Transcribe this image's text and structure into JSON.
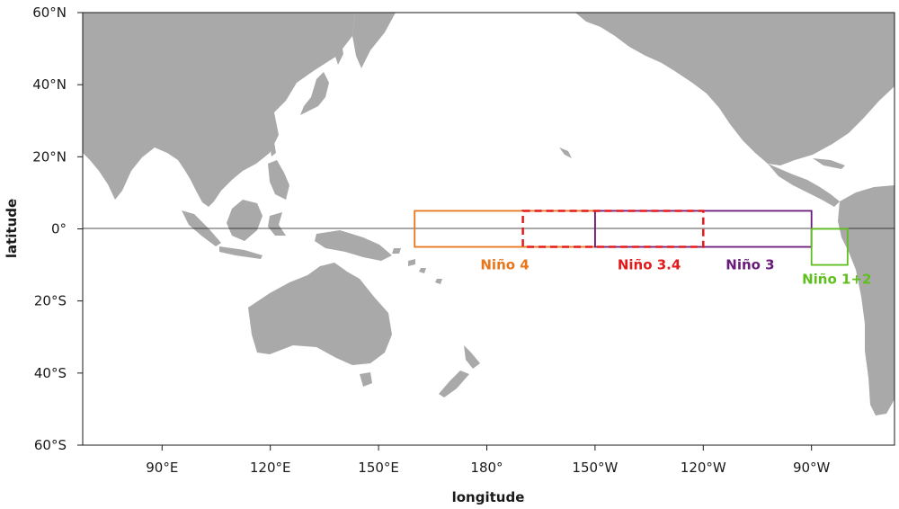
{
  "map": {
    "xlabel": "longitude",
    "ylabel": "latitude",
    "x_ticks": [
      "90°E",
      "120°E",
      "150°E",
      "180°",
      "150°W",
      "120°W",
      "90°W"
    ],
    "y_ticks": [
      "60°N",
      "40°N",
      "20°N",
      "0°",
      "20°S",
      "40°S",
      "60°S"
    ],
    "lon_range": [
      68,
      293
    ],
    "lat_range": [
      -60,
      60
    ],
    "land_color": "#a9a9a9"
  },
  "regions": [
    {
      "name": "Niño 4",
      "lon_range": [
        160,
        210
      ],
      "lat_range": [
        -5,
        5
      ],
      "color": "#e8761c",
      "style": "solid"
    },
    {
      "name": "Niño 3.4",
      "lon_range": [
        190,
        240
      ],
      "lat_range": [
        -5,
        5
      ],
      "color": "#e31a1c",
      "style": "dashed"
    },
    {
      "name": "Niño 3",
      "lon_range": [
        210,
        270
      ],
      "lat_range": [
        -5,
        5
      ],
      "color": "#6a1b7a",
      "style": "solid"
    },
    {
      "name": "Niño 1+2",
      "lon_range": [
        270,
        280
      ],
      "lat_range": [
        -10,
        0
      ],
      "color": "#5fbf1e",
      "style": "solid"
    }
  ]
}
